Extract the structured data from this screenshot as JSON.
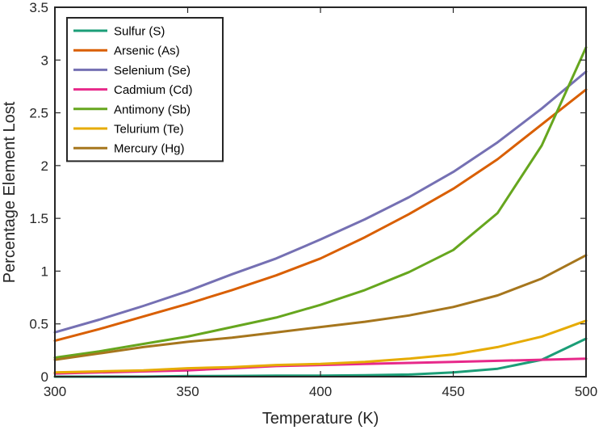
{
  "chart_data": {
    "type": "line",
    "title": "",
    "xlabel": "Temperature (K)",
    "ylabel": "Percentage Element Lost",
    "xlim": [
      300,
      500
    ],
    "ylim": [
      0,
      3.5
    ],
    "xticks": [
      300,
      350,
      400,
      450,
      500
    ],
    "xtick_labels": [
      "300",
      "350",
      "400",
      "450",
      "500"
    ],
    "yticks": [
      0,
      0.5,
      1,
      1.5,
      2,
      2.5,
      3,
      3.5
    ],
    "ytick_labels": [
      "0",
      "0.5",
      "1",
      "1.5",
      "2",
      "2.5",
      "3",
      "3.5"
    ],
    "grid": false,
    "legend_position": "top-left",
    "x": [
      300,
      316.7,
      333.3,
      350,
      366.7,
      383.3,
      400,
      416.7,
      433.3,
      450,
      466.7,
      483.3,
      500
    ],
    "series": [
      {
        "name": "Sulfur (S)",
        "color": "#1b9e77",
        "values": [
          0.0,
          0.0,
          0.0,
          0.005,
          0.007,
          0.009,
          0.01,
          0.013,
          0.02,
          0.04,
          0.075,
          0.16,
          0.36
        ]
      },
      {
        "name": "Arsenic (As)",
        "color": "#d95f02",
        "values": [
          0.34,
          0.45,
          0.57,
          0.69,
          0.82,
          0.96,
          1.12,
          1.32,
          1.54,
          1.78,
          2.06,
          2.39,
          2.72
        ]
      },
      {
        "name": "Selenium (Se)",
        "color": "#7570b3",
        "values": [
          0.42,
          0.54,
          0.67,
          0.81,
          0.97,
          1.12,
          1.3,
          1.49,
          1.7,
          1.94,
          2.22,
          2.54,
          2.89
        ]
      },
      {
        "name": "Cadmium (Cd)",
        "color": "#e7298a",
        "values": [
          0.03,
          0.04,
          0.05,
          0.06,
          0.08,
          0.1,
          0.11,
          0.12,
          0.13,
          0.14,
          0.15,
          0.16,
          0.17
        ]
      },
      {
        "name": "Antimony (Sb)",
        "color": "#66a61e",
        "values": [
          0.18,
          0.24,
          0.31,
          0.38,
          0.47,
          0.56,
          0.68,
          0.82,
          0.99,
          1.2,
          1.55,
          2.19,
          3.12
        ]
      },
      {
        "name": "Telurium (Te)",
        "color": "#e6ab02",
        "values": [
          0.04,
          0.05,
          0.06,
          0.08,
          0.09,
          0.11,
          0.12,
          0.14,
          0.17,
          0.21,
          0.28,
          0.38,
          0.53
        ]
      },
      {
        "name": "Mercury (Hg)",
        "color": "#a6761d",
        "values": [
          0.16,
          0.22,
          0.28,
          0.33,
          0.37,
          0.42,
          0.47,
          0.52,
          0.58,
          0.66,
          0.77,
          0.93,
          1.15
        ]
      }
    ]
  }
}
